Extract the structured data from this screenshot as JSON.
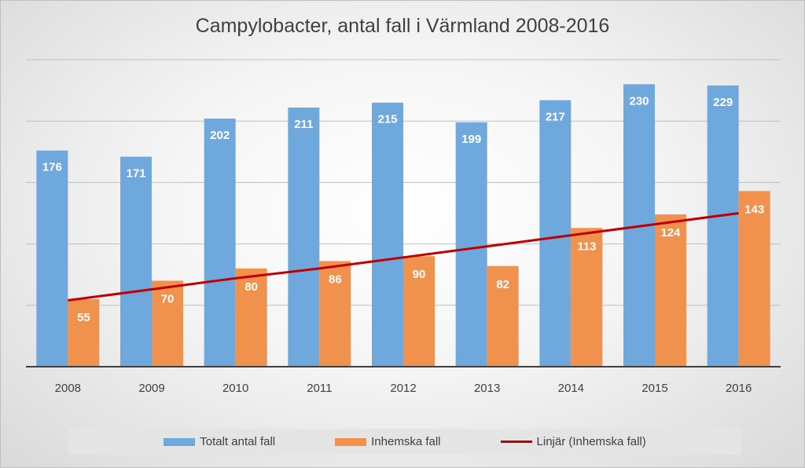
{
  "chart_data": {
    "type": "bar",
    "title": "Campylobacter, antal fall i Värmland 2008-2016",
    "categories": [
      "2008",
      "2009",
      "2010",
      "2011",
      "2012",
      "2013",
      "2014",
      "2015",
      "2016"
    ],
    "series": [
      {
        "name": "Totalt antal fall",
        "type": "bar",
        "color": "#6fa8dc",
        "values": [
          176,
          171,
          202,
          211,
          215,
          199,
          217,
          230,
          229
        ]
      },
      {
        "name": "Inhemska fall",
        "type": "bar",
        "color": "#f0924d",
        "values": [
          55,
          70,
          80,
          86,
          90,
          82,
          113,
          124,
          143
        ]
      },
      {
        "name": "Linjär (Inhemska fall)",
        "type": "line",
        "color": "#c00000",
        "values": [
          54,
          63,
          72,
          80,
          89,
          98,
          107,
          116,
          125
        ]
      }
    ],
    "ylim": [
      0,
      250
    ],
    "grid": true,
    "legend_position": "bottom"
  }
}
